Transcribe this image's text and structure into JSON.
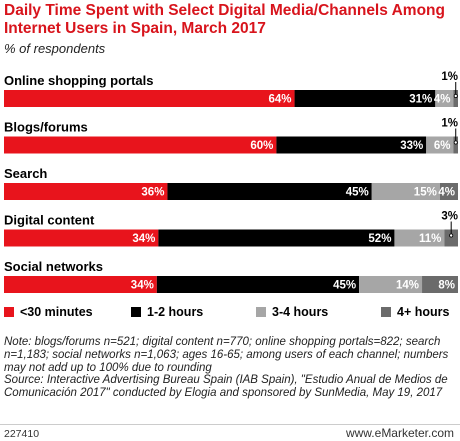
{
  "title": "Daily Time Spent with Select Digital Media/Channels Among Internet Users in Spain, March 2017",
  "subtitle": "% of respondents",
  "chart_data": {
    "type": "bar",
    "orientation": "horizontal",
    "stacked": true,
    "categories": [
      "Online shopping portals",
      "Blogs/forums",
      "Search",
      "Digital content",
      "Social networks"
    ],
    "series": [
      {
        "name": "<30 minutes",
        "color": "#e8141c",
        "values": [
          64,
          60,
          36,
          34,
          34
        ],
        "labels": [
          "64%",
          "60%",
          "36%",
          "34%",
          "34%"
        ]
      },
      {
        "name": "1-2 hours",
        "color": "#000000",
        "values": [
          31,
          33,
          45,
          52,
          45
        ],
        "labels": [
          "31%",
          "33%",
          "45%",
          "52%",
          "45%"
        ]
      },
      {
        "name": "3-4 hours",
        "color": "#a6a6a6",
        "values": [
          4,
          6,
          15,
          11,
          14
        ],
        "labels": [
          "4%",
          "6%",
          "15%",
          "11%",
          "14%"
        ]
      },
      {
        "name": "4+ hours",
        "color": "#6b6b6b",
        "values": [
          1,
          1,
          4,
          3,
          8
        ],
        "labels": [
          "1%",
          "1%",
          "4%",
          "3%",
          "8%"
        ]
      }
    ],
    "xlim": [
      0,
      100
    ],
    "legend": "bottom"
  },
  "note": "Note: blogs/forums n=521; digital content n=770; online shopping portals=822; search n=1,183; social networks n=1,063; ages 16-65; among users of each channel; numbers may not add up to 100% due to rounding\nSource: Interactive Advertising Bureau Spain (IAB Spain), \"Estudio Anual de Medios de Comunicación 2017\" conducted by Elogia and sponsored by SunMedia, May 19, 2017",
  "footer": {
    "id": "227410",
    "brand": "www.eMarketer.com"
  }
}
